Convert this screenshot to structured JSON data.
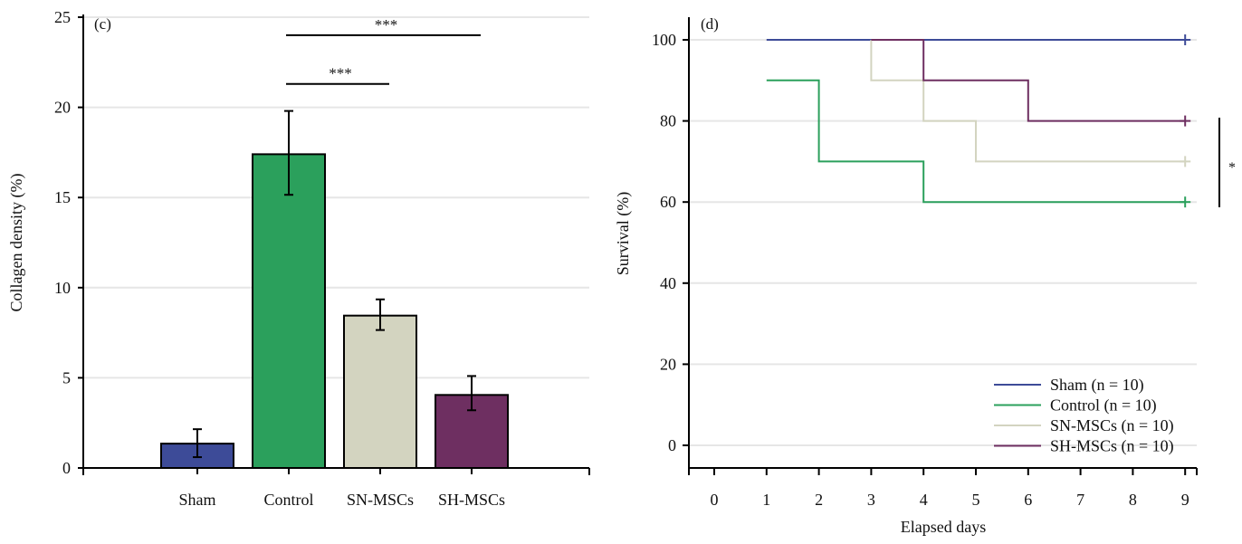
{
  "chart_data": [
    {
      "type": "bar",
      "panel_label": "(c)",
      "ylabel": "Collagen density (%)",
      "xlabel": "",
      "ylim": [
        0,
        25
      ],
      "yticks": [
        0,
        5,
        10,
        15,
        20,
        25
      ],
      "grid": true,
      "categories": [
        "Sham",
        "Control",
        "SN-MSCs",
        "SH-MSCs"
      ],
      "values": [
        1.35,
        17.4,
        8.45,
        4.05
      ],
      "error_low": [
        0.6,
        15.15,
        7.65,
        3.2
      ],
      "error_high": [
        2.15,
        19.8,
        9.35,
        5.1
      ],
      "colors": [
        "#3d4b98",
        "#2ba05c",
        "#d3d4c0",
        "#6e2f61"
      ],
      "significance": [
        {
          "from": "Control",
          "to": "SH-MSCs",
          "label": "***",
          "y": 24
        },
        {
          "from": "Control",
          "to": "SN-MSCs",
          "label": "***",
          "y": 21.3
        }
      ]
    },
    {
      "type": "line",
      "subtype": "step",
      "panel_label": "(d)",
      "xlabel": "Elapsed days",
      "ylabel": "Survival (%)",
      "xlim": [
        0,
        9
      ],
      "ylim": [
        0,
        100
      ],
      "xticks": [
        0,
        1,
        2,
        3,
        4,
        5,
        6,
        7,
        8,
        9
      ],
      "yticks": [
        0,
        20,
        40,
        60,
        80,
        100
      ],
      "grid": true,
      "legend_position": "bottom-right",
      "series": [
        {
          "name": "Sham (n = 10)",
          "color": "#3d4b98",
          "x": [
            1,
            9
          ],
          "y": [
            100,
            100
          ]
        },
        {
          "name": "Control (n = 10)",
          "color": "#2ba05c",
          "x": [
            1,
            2,
            4,
            9
          ],
          "y": [
            90,
            70,
            60,
            60
          ]
        },
        {
          "name": "SN-MSCs (n = 10)",
          "color": "#d3d4c0",
          "x": [
            3,
            4,
            5,
            9
          ],
          "y": [
            90,
            80,
            70,
            70
          ],
          "start_y": 100
        },
        {
          "name": "SH-MSCs (n = 10)",
          "color": "#6e2f61",
          "x": [
            3,
            4,
            6,
            9
          ],
          "y": [
            100,
            90,
            80,
            80
          ]
        }
      ],
      "significance": {
        "label": "*",
        "between": [
          "SH-MSCs (n = 10)",
          "Control (n = 10)"
        ]
      }
    }
  ]
}
